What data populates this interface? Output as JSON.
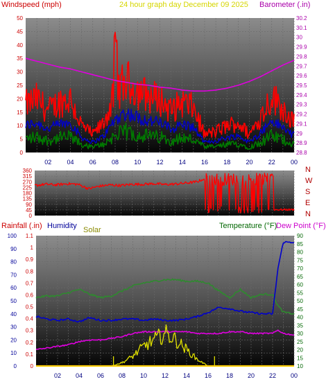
{
  "colors": {
    "wind": "#ff0000",
    "wind_avg": "#0000cc",
    "wind_low": "#007a00",
    "baro": "#e000e0",
    "winddir": "#ff0000",
    "rain": "#cc0000",
    "humidity": "#0000cc",
    "solar": "#e0e000",
    "temperature": "#2f8a2f",
    "dewpoint": "#e000e0",
    "label_wind": "#cc0000",
    "label_baro": "#aa00aa",
    "label_title": "#d6d600",
    "label_humidity": "#000099",
    "label_solar": "#8a8a00",
    "label_temp": "#006600",
    "label_dew": "#cc00cc"
  },
  "chart_data": [
    {
      "type": "line",
      "title": "24 hour graph day   December 09 2025",
      "left_label": "Windspeed (mph)",
      "right_label": "Barometer (.in)",
      "x_ticks": [
        "02",
        "04",
        "06",
        "08",
        "10",
        "12",
        "14",
        "16",
        "18",
        "20",
        "22",
        "00"
      ],
      "y_left_ticks": [
        "0",
        "5",
        "10",
        "15",
        "20",
        "25",
        "30",
        "35",
        "40",
        "45",
        "50"
      ],
      "y_left_lim": [
        0,
        50
      ],
      "y_right_ticks": [
        "28.8",
        "28.9",
        "29",
        "29.1",
        "29.2",
        "29.3",
        "29.4",
        "29.5",
        "29.6",
        "29.7",
        "29.8",
        "29.9",
        "30",
        "30.1",
        "30.2"
      ],
      "y_right_lim": [
        28.8,
        30.2
      ],
      "hours": [
        0,
        1,
        2,
        3,
        4,
        5,
        6,
        7,
        8,
        9,
        10,
        11,
        12,
        13,
        14,
        15,
        16,
        17,
        18,
        19,
        20,
        21,
        22,
        23,
        24
      ],
      "series": [
        {
          "name": "Windspeed (mph)",
          "values": [
            16,
            18,
            14,
            17,
            18,
            9,
            6,
            10,
            20,
            24,
            21,
            19,
            18,
            14,
            17,
            15,
            6,
            7,
            9,
            10,
            6,
            12,
            19,
            15,
            10
          ]
        },
        {
          "name": "Barometer (.in)",
          "values": [
            29.78,
            29.75,
            29.72,
            29.69,
            29.67,
            29.64,
            29.61,
            29.58,
            29.55,
            29.53,
            29.51,
            29.5,
            29.48,
            29.47,
            29.45,
            29.44,
            29.44,
            29.45,
            29.47,
            29.5,
            29.54,
            29.59,
            29.65,
            29.71,
            29.76
          ]
        }
      ]
    },
    {
      "type": "line",
      "title": "",
      "right_label": "",
      "y_left_ticks": [
        "0",
        "45",
        "90",
        "135",
        "180",
        "225",
        "270",
        "315",
        "360"
      ],
      "y_left_lim": [
        0,
        360
      ],
      "dir_labels": [
        "N",
        "W",
        "S",
        "E",
        "N"
      ],
      "hours": [
        0,
        1,
        2,
        3,
        4,
        5,
        6,
        7,
        8,
        9,
        10,
        11,
        12,
        13,
        14,
        15,
        16,
        17,
        18,
        19,
        20,
        21,
        22,
        23,
        24
      ],
      "series": [
        {
          "name": "Wind direction",
          "values": [
            240,
            250,
            245,
            255,
            250,
            215,
            235,
            245,
            240,
            250,
            250,
            255,
            248,
            252,
            260,
            270,
            305,
            90,
            300,
            160,
            320,
            300,
            330,
            40,
            45
          ]
        }
      ]
    },
    {
      "type": "line",
      "left_label_rain": "Rainfall (.in)",
      "left_label_humidity": "Humidity",
      "left_label_solar": "Solar",
      "right_label_temp": "Temperature (°F)",
      "right_label_dew": "Dew Point (°F)",
      "y_humidity_ticks": [
        "0",
        "10",
        "20",
        "30",
        "40",
        "50",
        "60",
        "70",
        "80",
        "90",
        "100"
      ],
      "y_rain_ticks": [
        "0",
        "0.1",
        "0.2",
        "0.3",
        "0.4",
        "0.5",
        "0.6",
        "0.7",
        "0.8",
        "0.9",
        "1",
        "1.1"
      ],
      "y_rain_lim": [
        0,
        1.1
      ],
      "y_temp_ticks": [
        "10",
        "15",
        "20",
        "25",
        "30",
        "35",
        "40",
        "45",
        "50",
        "55",
        "60",
        "65",
        "70",
        "75",
        "80",
        "85",
        "90"
      ],
      "y_temp_lim": [
        10,
        90
      ],
      "hours": [
        0,
        1,
        2,
        3,
        4,
        5,
        6,
        7,
        8,
        9,
        10,
        11,
        12,
        13,
        14,
        15,
        16,
        17,
        18,
        19,
        20,
        21,
        22,
        22.5,
        23,
        24
      ],
      "series": [
        {
          "name": "Temperature (°F)",
          "values": [
            52,
            53,
            53,
            55,
            57,
            54,
            52,
            53,
            56,
            59,
            61,
            62,
            63,
            63,
            62,
            62,
            61,
            56,
            52,
            57,
            52,
            54,
            54,
            47,
            43,
            42
          ]
        },
        {
          "name": "Humidity",
          "values": [
            38,
            36,
            35,
            36,
            34,
            37,
            35,
            35,
            36,
            36,
            35,
            36,
            35,
            35,
            36,
            38,
            41,
            45,
            44,
            42,
            41,
            40,
            40,
            75,
            95,
            95
          ]
        },
        {
          "name": "Dew Point (°F)",
          "values": [
            20,
            21,
            22,
            23,
            25,
            26,
            26,
            27,
            28,
            30,
            31,
            31,
            31,
            31,
            31,
            30,
            30,
            30,
            31,
            31,
            30,
            30,
            30,
            32,
            30,
            29
          ]
        },
        {
          "name": "Solar",
          "values": [
            0,
            0,
            0,
            0,
            0,
            0,
            0,
            0,
            5,
            15,
            30,
            40,
            50,
            40,
            25,
            10,
            0,
            0,
            0,
            0,
            0,
            0,
            0,
            0,
            0,
            0
          ]
        },
        {
          "name": "Rainfall (.in)",
          "values": [
            0,
            0,
            0,
            0,
            0,
            0,
            0,
            0,
            0,
            0,
            0,
            0,
            0,
            0,
            0,
            0,
            0,
            0,
            0,
            0,
            0,
            0,
            0,
            0,
            0,
            0
          ]
        }
      ]
    }
  ]
}
